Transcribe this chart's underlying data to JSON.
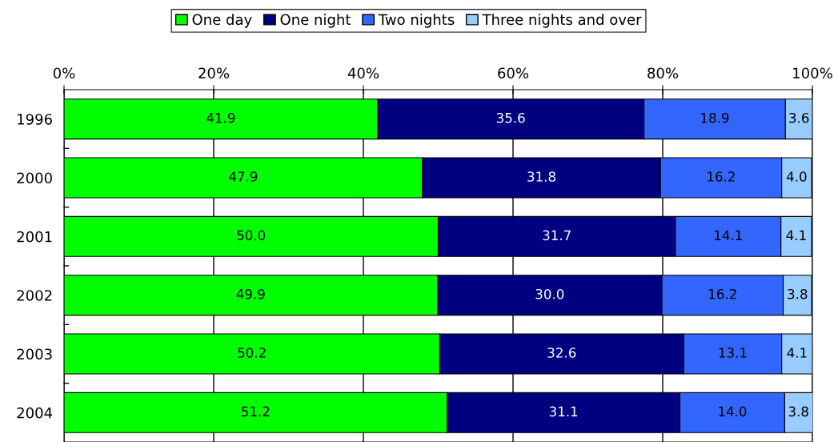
{
  "chart_data": {
    "type": "bar",
    "orientation": "horizontal",
    "stacked": true,
    "grid": "x",
    "legend": "top",
    "categories": [
      "1996",
      "2000",
      "2001",
      "2002",
      "2003",
      "2004"
    ],
    "series": [
      {
        "name": "One day",
        "color": "#00ff00",
        "values": [
          41.9,
          47.9,
          50.0,
          49.9,
          50.2,
          51.2
        ],
        "value_labels": [
          "41.9",
          "47.9",
          "50.0",
          "49.9",
          "50.2",
          "51.2"
        ]
      },
      {
        "name": "One night",
        "color": "#000080",
        "values": [
          35.6,
          31.8,
          31.7,
          30.0,
          32.6,
          31.1
        ],
        "value_labels": [
          "35.6",
          "31.8",
          "31.7",
          "30.0",
          "32.6",
          "31.1"
        ]
      },
      {
        "name": "Two nights",
        "color": "#3366ff",
        "values": [
          18.9,
          16.2,
          14.1,
          16.2,
          13.1,
          14.0
        ],
        "value_labels": [
          "18.9",
          "16.2",
          "14.1",
          "16.2",
          "13.1",
          "14.0"
        ]
      },
      {
        "name": "Three nights and over",
        "color": "#99ccff",
        "values": [
          3.6,
          4.0,
          4.1,
          3.8,
          4.1,
          3.8
        ],
        "value_labels": [
          "3.6",
          "4.0",
          "4.1",
          "3.8",
          "4.1",
          "3.8"
        ]
      }
    ],
    "xlim": [
      0,
      100
    ],
    "xticks": [
      {
        "value": 0,
        "label": "0%"
      },
      {
        "value": 20,
        "label": "20%"
      },
      {
        "value": 40,
        "label": "40%"
      },
      {
        "value": 60,
        "label": "60%"
      },
      {
        "value": 80,
        "label": "80%"
      },
      {
        "value": 100,
        "label": "100%"
      }
    ]
  }
}
